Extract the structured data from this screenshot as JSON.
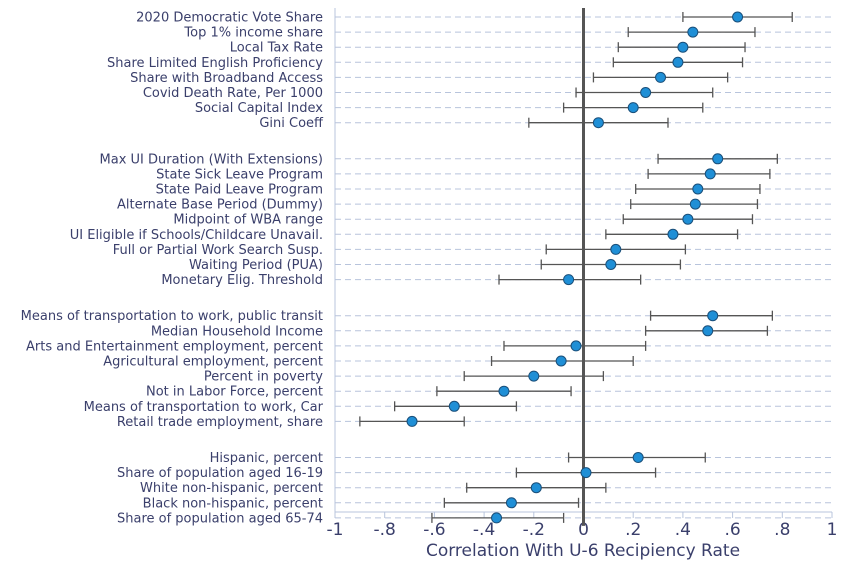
{
  "chart_data": {
    "type": "scatter",
    "subtype": "coefficient-plot-with-confidence-intervals",
    "xlabel": "Correlation With U-6 Recipiency Rate",
    "xlim": [
      -1,
      1
    ],
    "xticks": [
      -1,
      -0.8,
      -0.6,
      -0.4,
      -0.2,
      0,
      0.2,
      0.4,
      0.6,
      0.8,
      1
    ],
    "xtick_labels": [
      "-1",
      "-.8",
      "-.6",
      "-.4",
      "-.2",
      "0",
      ".2",
      ".4",
      ".6",
      ".8",
      "1"
    ],
    "reference_line_x": 0,
    "grid": "horizontal-dashed",
    "colors": {
      "point": "#1f8fd6",
      "point_edge": "#1a4f7a",
      "ci": "#555555",
      "grid": "#b8c4dc",
      "text": "#3a3f6b"
    },
    "groups": [
      {
        "items": [
          {
            "label": "2020 Democratic Vote Share",
            "estimate": 0.62,
            "lo": 0.4,
            "hi": 0.84
          },
          {
            "label": "Top 1% income share",
            "estimate": 0.44,
            "lo": 0.18,
            "hi": 0.69
          },
          {
            "label": "Local Tax Rate",
            "estimate": 0.4,
            "lo": 0.14,
            "hi": 0.65
          },
          {
            "label": "Share Limited English Proficiency",
            "estimate": 0.38,
            "lo": 0.12,
            "hi": 0.64
          },
          {
            "label": "Share with Broadband Access",
            "estimate": 0.31,
            "lo": 0.04,
            "hi": 0.58
          },
          {
            "label": "Covid Death Rate, Per 1000",
            "estimate": 0.25,
            "lo": -0.03,
            "hi": 0.52
          },
          {
            "label": "Social Capital Index",
            "estimate": 0.2,
            "lo": -0.08,
            "hi": 0.48
          },
          {
            "label": "Gini Coeff",
            "estimate": 0.06,
            "lo": -0.22,
            "hi": 0.34
          }
        ]
      },
      {
        "items": [
          {
            "label": "Max UI Duration (With Extensions)",
            "estimate": 0.54,
            "lo": 0.3,
            "hi": 0.78
          },
          {
            "label": "State Sick Leave Program",
            "estimate": 0.51,
            "lo": 0.26,
            "hi": 0.75
          },
          {
            "label": "State Paid Leave Program",
            "estimate": 0.46,
            "lo": 0.21,
            "hi": 0.71
          },
          {
            "label": "Alternate Base Period (Dummy)",
            "estimate": 0.45,
            "lo": 0.19,
            "hi": 0.7
          },
          {
            "label": "Midpoint of WBA range",
            "estimate": 0.42,
            "lo": 0.16,
            "hi": 0.68
          },
          {
            "label": "UI Eligible if Schools/Childcare Unavail.",
            "estimate": 0.36,
            "lo": 0.09,
            "hi": 0.62
          },
          {
            "label": "Full or Partial Work Search Susp.",
            "estimate": 0.13,
            "lo": -0.15,
            "hi": 0.41
          },
          {
            "label": "Waiting Period (PUA)",
            "estimate": 0.11,
            "lo": -0.17,
            "hi": 0.39
          },
          {
            "label": "Monetary Elig. Threshold",
            "estimate": -0.06,
            "lo": -0.34,
            "hi": 0.23
          }
        ]
      },
      {
        "items": [
          {
            "label": "Means of transportation to work, public transit",
            "estimate": 0.52,
            "lo": 0.27,
            "hi": 0.76
          },
          {
            "label": "Median Household Income",
            "estimate": 0.5,
            "lo": 0.25,
            "hi": 0.74
          },
          {
            "label": "Arts and Entertainment employment, percent",
            "estimate": -0.03,
            "lo": -0.32,
            "hi": 0.25
          },
          {
            "label": "Agricultural employment, percent",
            "estimate": -0.09,
            "lo": -0.37,
            "hi": 0.2
          },
          {
            "label": "Percent in poverty",
            "estimate": -0.2,
            "lo": -0.48,
            "hi": 0.08
          },
          {
            "label": "Not in Labor Force, percent",
            "estimate": -0.32,
            "lo": -0.59,
            "hi": -0.05
          },
          {
            "label": "Means of transportation to work, Car",
            "estimate": -0.52,
            "lo": -0.76,
            "hi": -0.27
          },
          {
            "label": "Retail trade employment, share",
            "estimate": -0.69,
            "lo": -0.9,
            "hi": -0.48
          }
        ]
      },
      {
        "items": [
          {
            "label": "Hispanic, percent",
            "estimate": 0.22,
            "lo": -0.06,
            "hi": 0.49
          },
          {
            "label": "Share of population aged 16-19",
            "estimate": 0.01,
            "lo": -0.27,
            "hi": 0.29
          },
          {
            "label": "White non-hispanic, percent",
            "estimate": -0.19,
            "lo": -0.47,
            "hi": 0.09
          },
          {
            "label": "Black non-hispanic, percent",
            "estimate": -0.29,
            "lo": -0.56,
            "hi": -0.02
          },
          {
            "label": "Share of population aged 65-74",
            "estimate": -0.35,
            "lo": -0.61,
            "hi": -0.08
          }
        ]
      }
    ]
  }
}
